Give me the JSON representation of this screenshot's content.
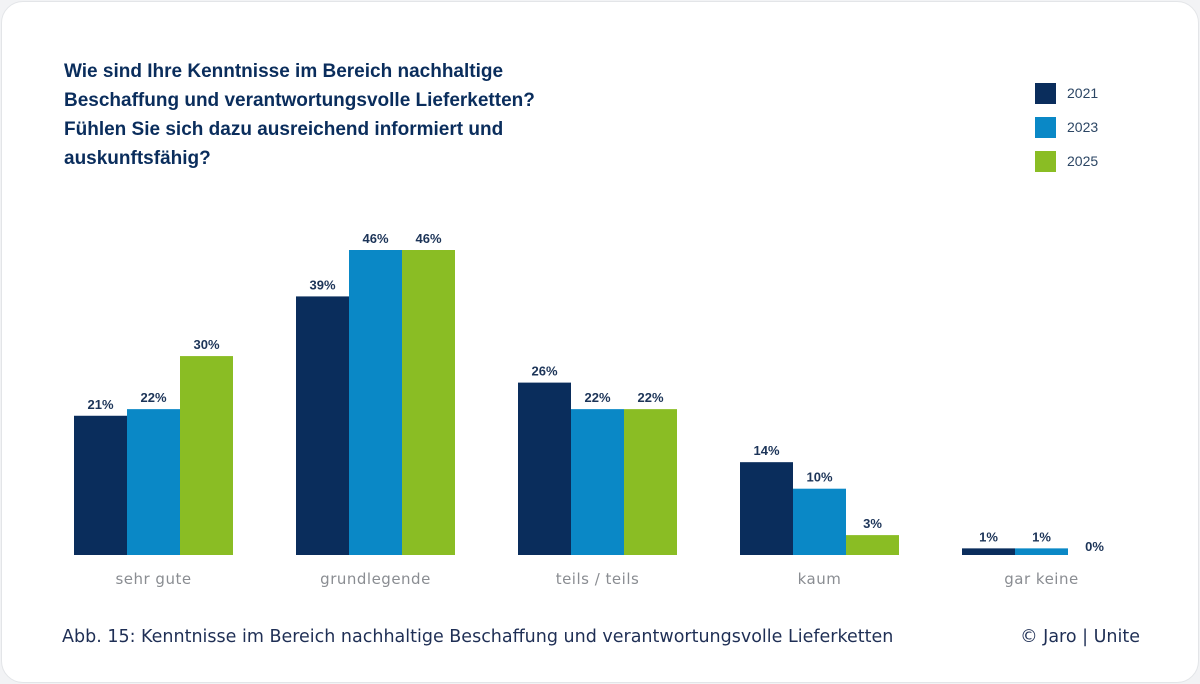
{
  "chart_data": {
    "type": "bar",
    "title": "Wie sind Ihre Kenntnisse im Bereich nachhaltige Beschaffung und verantwortungsvolle Lieferketten? Fühlen Sie sich dazu ausreichend informiert und auskunftsfähig?",
    "categories": [
      "sehr gute",
      "grundlegende",
      "teils / teils",
      "kaum",
      "gar keine"
    ],
    "series": [
      {
        "name": "2021",
        "color": "#0a2d5c",
        "values": [
          21,
          39,
          26,
          14,
          1
        ]
      },
      {
        "name": "2023",
        "color": "#0a88c6",
        "values": [
          22,
          46,
          22,
          10,
          1
        ]
      },
      {
        "name": "2025",
        "color": "#8abd24",
        "values": [
          30,
          46,
          22,
          3,
          0
        ]
      }
    ],
    "value_suffix": "%",
    "ylim": [
      0,
      46
    ],
    "grid": false,
    "legend": "top-right"
  },
  "caption": "Abb. 15: Kenntnisse im Bereich nachhaltige Beschaffung und verantwortungsvolle Lieferketten",
  "copyright": "© Jaro | Unite"
}
